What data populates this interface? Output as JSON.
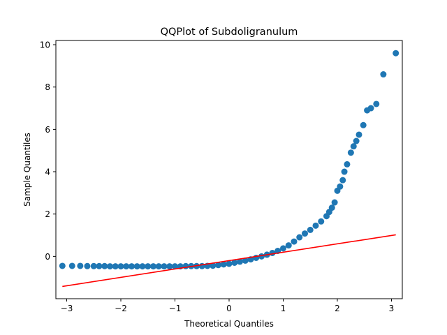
{
  "chart_data": {
    "type": "scatter",
    "title": "QQPlot of Subdoligranulum",
    "xlabel": "Theoretical Quantiles",
    "ylabel": "Sample Quantiles",
    "xlim": [
      -3.2,
      3.2
    ],
    "ylim": [
      -2.0,
      10.2
    ],
    "xticks": [
      -3,
      -2,
      -1,
      0,
      1,
      2,
      3
    ],
    "yticks": [
      0,
      2,
      4,
      6,
      8,
      10
    ],
    "grid": false,
    "legend": "none",
    "colors": {
      "points": "#1f77b4",
      "reference_line": "#ff0000"
    },
    "series": [
      {
        "points": [
          [
            -3.08,
            -0.45
          ],
          [
            -2.9,
            -0.45
          ],
          [
            -2.75,
            -0.45
          ],
          [
            -2.62,
            -0.46
          ],
          [
            -2.5,
            -0.46
          ],
          [
            -2.4,
            -0.46
          ],
          [
            -2.3,
            -0.46
          ],
          [
            -2.2,
            -0.47
          ],
          [
            -2.1,
            -0.47
          ],
          [
            -2.0,
            -0.47
          ],
          [
            -1.9,
            -0.47
          ],
          [
            -1.8,
            -0.47
          ],
          [
            -1.7,
            -0.47
          ],
          [
            -1.6,
            -0.47
          ],
          [
            -1.5,
            -0.47
          ],
          [
            -1.4,
            -0.47
          ],
          [
            -1.3,
            -0.47
          ],
          [
            -1.2,
            -0.47
          ],
          [
            -1.1,
            -0.47
          ],
          [
            -1.0,
            -0.47
          ],
          [
            -0.9,
            -0.47
          ],
          [
            -0.8,
            -0.46
          ],
          [
            -0.7,
            -0.46
          ],
          [
            -0.6,
            -0.46
          ],
          [
            -0.5,
            -0.46
          ],
          [
            -0.4,
            -0.45
          ],
          [
            -0.3,
            -0.44
          ],
          [
            -0.2,
            -0.41
          ],
          [
            -0.1,
            -0.38
          ],
          [
            0.0,
            -0.35
          ],
          [
            0.1,
            -0.3
          ],
          [
            0.2,
            -0.25
          ],
          [
            0.3,
            -0.2
          ],
          [
            0.4,
            -0.14
          ],
          [
            0.5,
            -0.07
          ],
          [
            0.6,
            0.0
          ],
          [
            0.7,
            0.08
          ],
          [
            0.8,
            0.16
          ],
          [
            0.9,
            0.26
          ],
          [
            1.0,
            0.38
          ],
          [
            1.1,
            0.52
          ],
          [
            1.2,
            0.7
          ],
          [
            1.3,
            0.9
          ],
          [
            1.4,
            1.08
          ],
          [
            1.5,
            1.25
          ],
          [
            1.6,
            1.45
          ],
          [
            1.7,
            1.65
          ],
          [
            1.8,
            1.9
          ],
          [
            1.85,
            2.1
          ],
          [
            1.9,
            2.3
          ],
          [
            1.95,
            2.55
          ],
          [
            2.0,
            3.1
          ],
          [
            2.05,
            3.3
          ],
          [
            2.1,
            3.6
          ],
          [
            2.13,
            4.0
          ],
          [
            2.18,
            4.35
          ],
          [
            2.25,
            4.9
          ],
          [
            2.3,
            5.2
          ],
          [
            2.35,
            5.45
          ],
          [
            2.4,
            5.75
          ],
          [
            2.48,
            6.2
          ],
          [
            2.55,
            6.9
          ],
          [
            2.62,
            7.0
          ],
          [
            2.72,
            7.2
          ],
          [
            2.85,
            8.6
          ],
          [
            3.08,
            9.6
          ]
        ]
      }
    ],
    "reference_line": {
      "x": [
        -3.08,
        3.08
      ],
      "y": [
        -1.42,
        1.02
      ]
    }
  }
}
